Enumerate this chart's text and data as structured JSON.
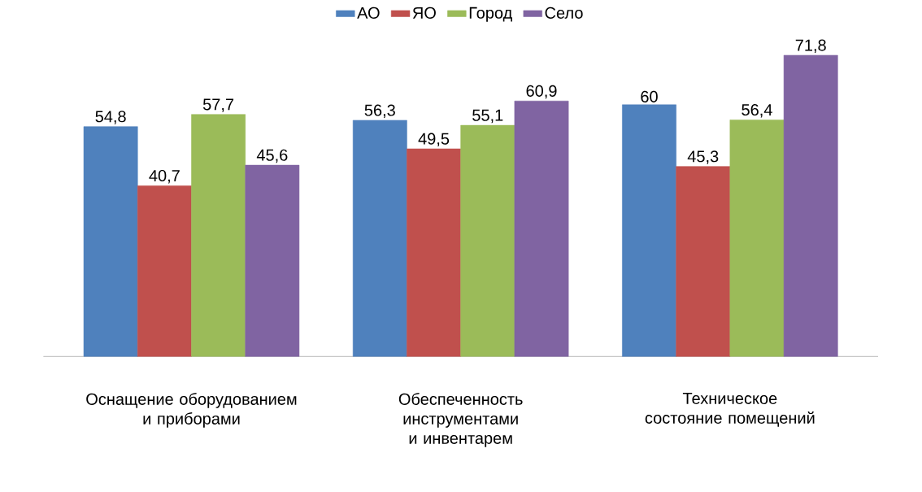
{
  "chart_data": {
    "type": "bar",
    "categories": [
      "Оснащение оборудованием и приборами",
      "Обеспеченность инструментами и инвентарем",
      "Техническое состояние помещений"
    ],
    "series": [
      {
        "name": "АО",
        "color": "#4f81bd",
        "values": [
          54.8,
          56.3,
          60
        ],
        "value_labels": [
          "54,8",
          "56,3",
          "60"
        ]
      },
      {
        "name": "ЯО",
        "color": "#c0504d",
        "values": [
          40.7,
          49.5,
          45.3
        ],
        "value_labels": [
          "40,7",
          "49,5",
          "45,3"
        ]
      },
      {
        "name": "Город",
        "color": "#9bbb59",
        "values": [
          57.7,
          55.1,
          56.4
        ],
        "value_labels": [
          "57,7",
          "55,1",
          "56,4"
        ]
      },
      {
        "name": "Село",
        "color": "#8064a2",
        "values": [
          45.6,
          60.9,
          71.8
        ],
        "value_labels": [
          "45,6",
          "60,9",
          "71,8"
        ]
      }
    ],
    "tick_labels": "x",
    "legend": "top"
  }
}
